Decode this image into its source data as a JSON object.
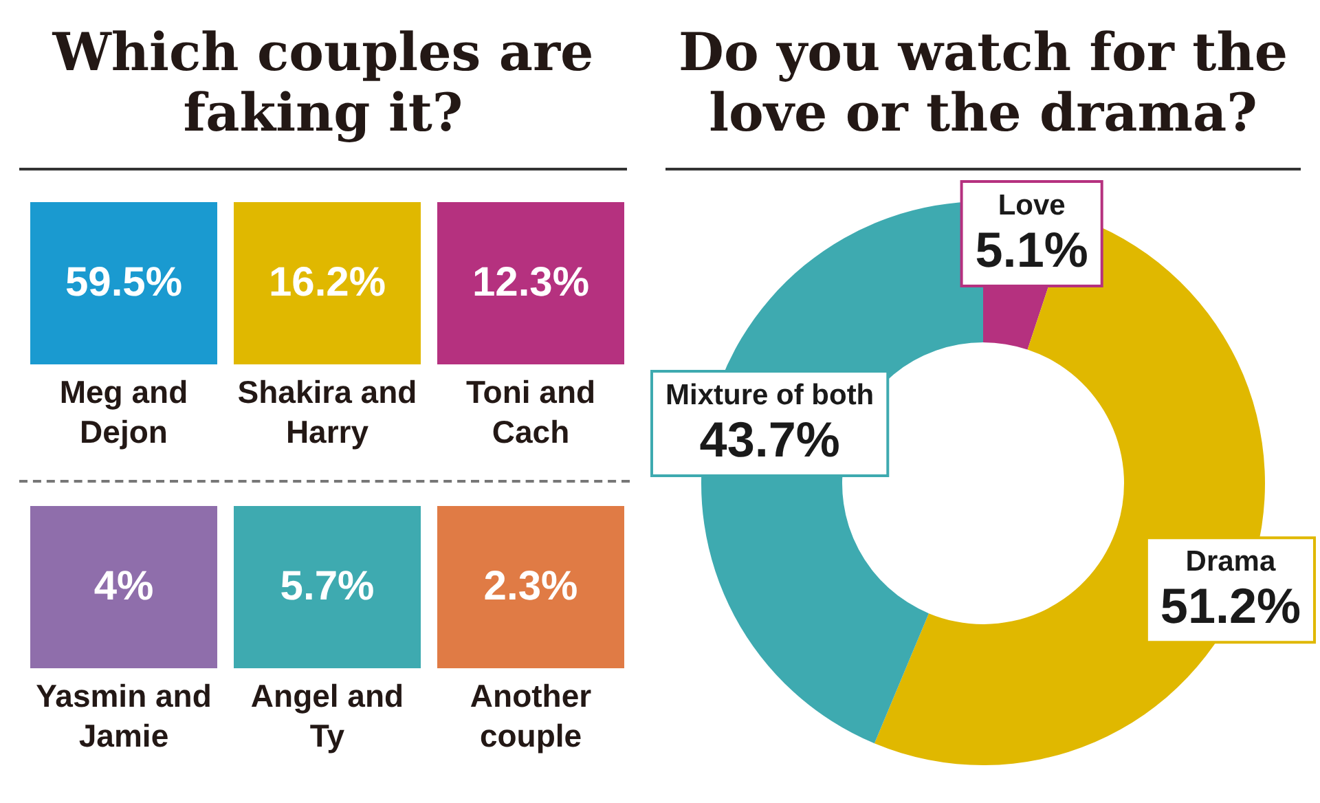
{
  "chart_data": [
    {
      "type": "other",
      "title": "Which couples are faking it?",
      "categories": [
        "Meg and Dejon",
        "Shakira and Harry",
        "Toni and Cach",
        "Yasmin and Jamie",
        "Angel and Ty",
        "Another couple"
      ],
      "values": [
        59.5,
        16.2,
        12.3,
        4,
        5.7,
        2.3
      ],
      "value_labels": [
        "59.5%",
        "16.2%",
        "12.3%",
        "4%",
        "5.7%",
        "2.3%"
      ],
      "colors": [
        "#1a9ad0",
        "#e0b800",
        "#b5317f",
        "#8f6eab",
        "#3eaab0",
        "#e07b45"
      ]
    },
    {
      "type": "donut",
      "title": "Do you watch for the love or the drama?",
      "categories": [
        "Love",
        "Drama",
        "Mixture of both"
      ],
      "values": [
        5.1,
        51.2,
        43.7
      ],
      "value_labels": [
        "5.1%",
        "51.2%",
        "43.7%"
      ],
      "colors": [
        "#b5317f",
        "#e0b800",
        "#3eaab0"
      ]
    }
  ]
}
